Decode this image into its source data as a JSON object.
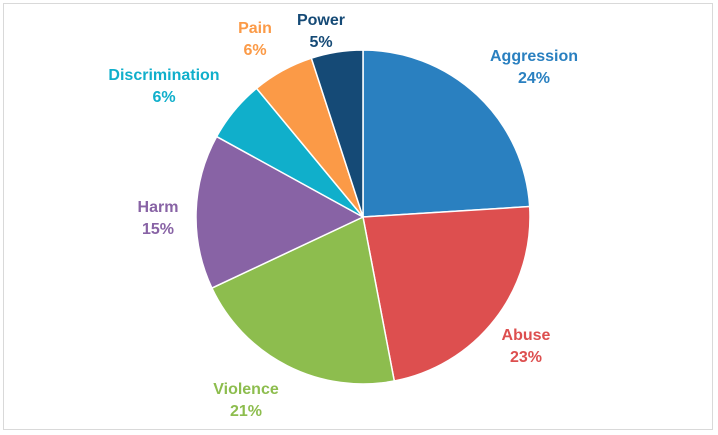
{
  "chart_data": {
    "type": "pie",
    "slices": [
      {
        "label": "Aggression",
        "value": 24,
        "display": "24%",
        "color": "#2a80c0"
      },
      {
        "label": "Abuse",
        "value": 23,
        "display": "23%",
        "color": "#dd4f4f"
      },
      {
        "label": "Violence",
        "value": 21,
        "display": "21%",
        "color": "#8dbd4e"
      },
      {
        "label": "Harm",
        "value": 15,
        "display": "15%",
        "color": "#8863a5"
      },
      {
        "label": "Discrimination",
        "value": 6,
        "display": "6%",
        "color": "#10afcb"
      },
      {
        "label": "Pain",
        "value": 6,
        "display": "6%",
        "color": "#fb9a47"
      },
      {
        "label": "Power",
        "value": 5,
        "display": "5%",
        "color": "#154a76"
      }
    ],
    "start": "12 o'clock",
    "direction": "clockwise",
    "legend": "none"
  }
}
